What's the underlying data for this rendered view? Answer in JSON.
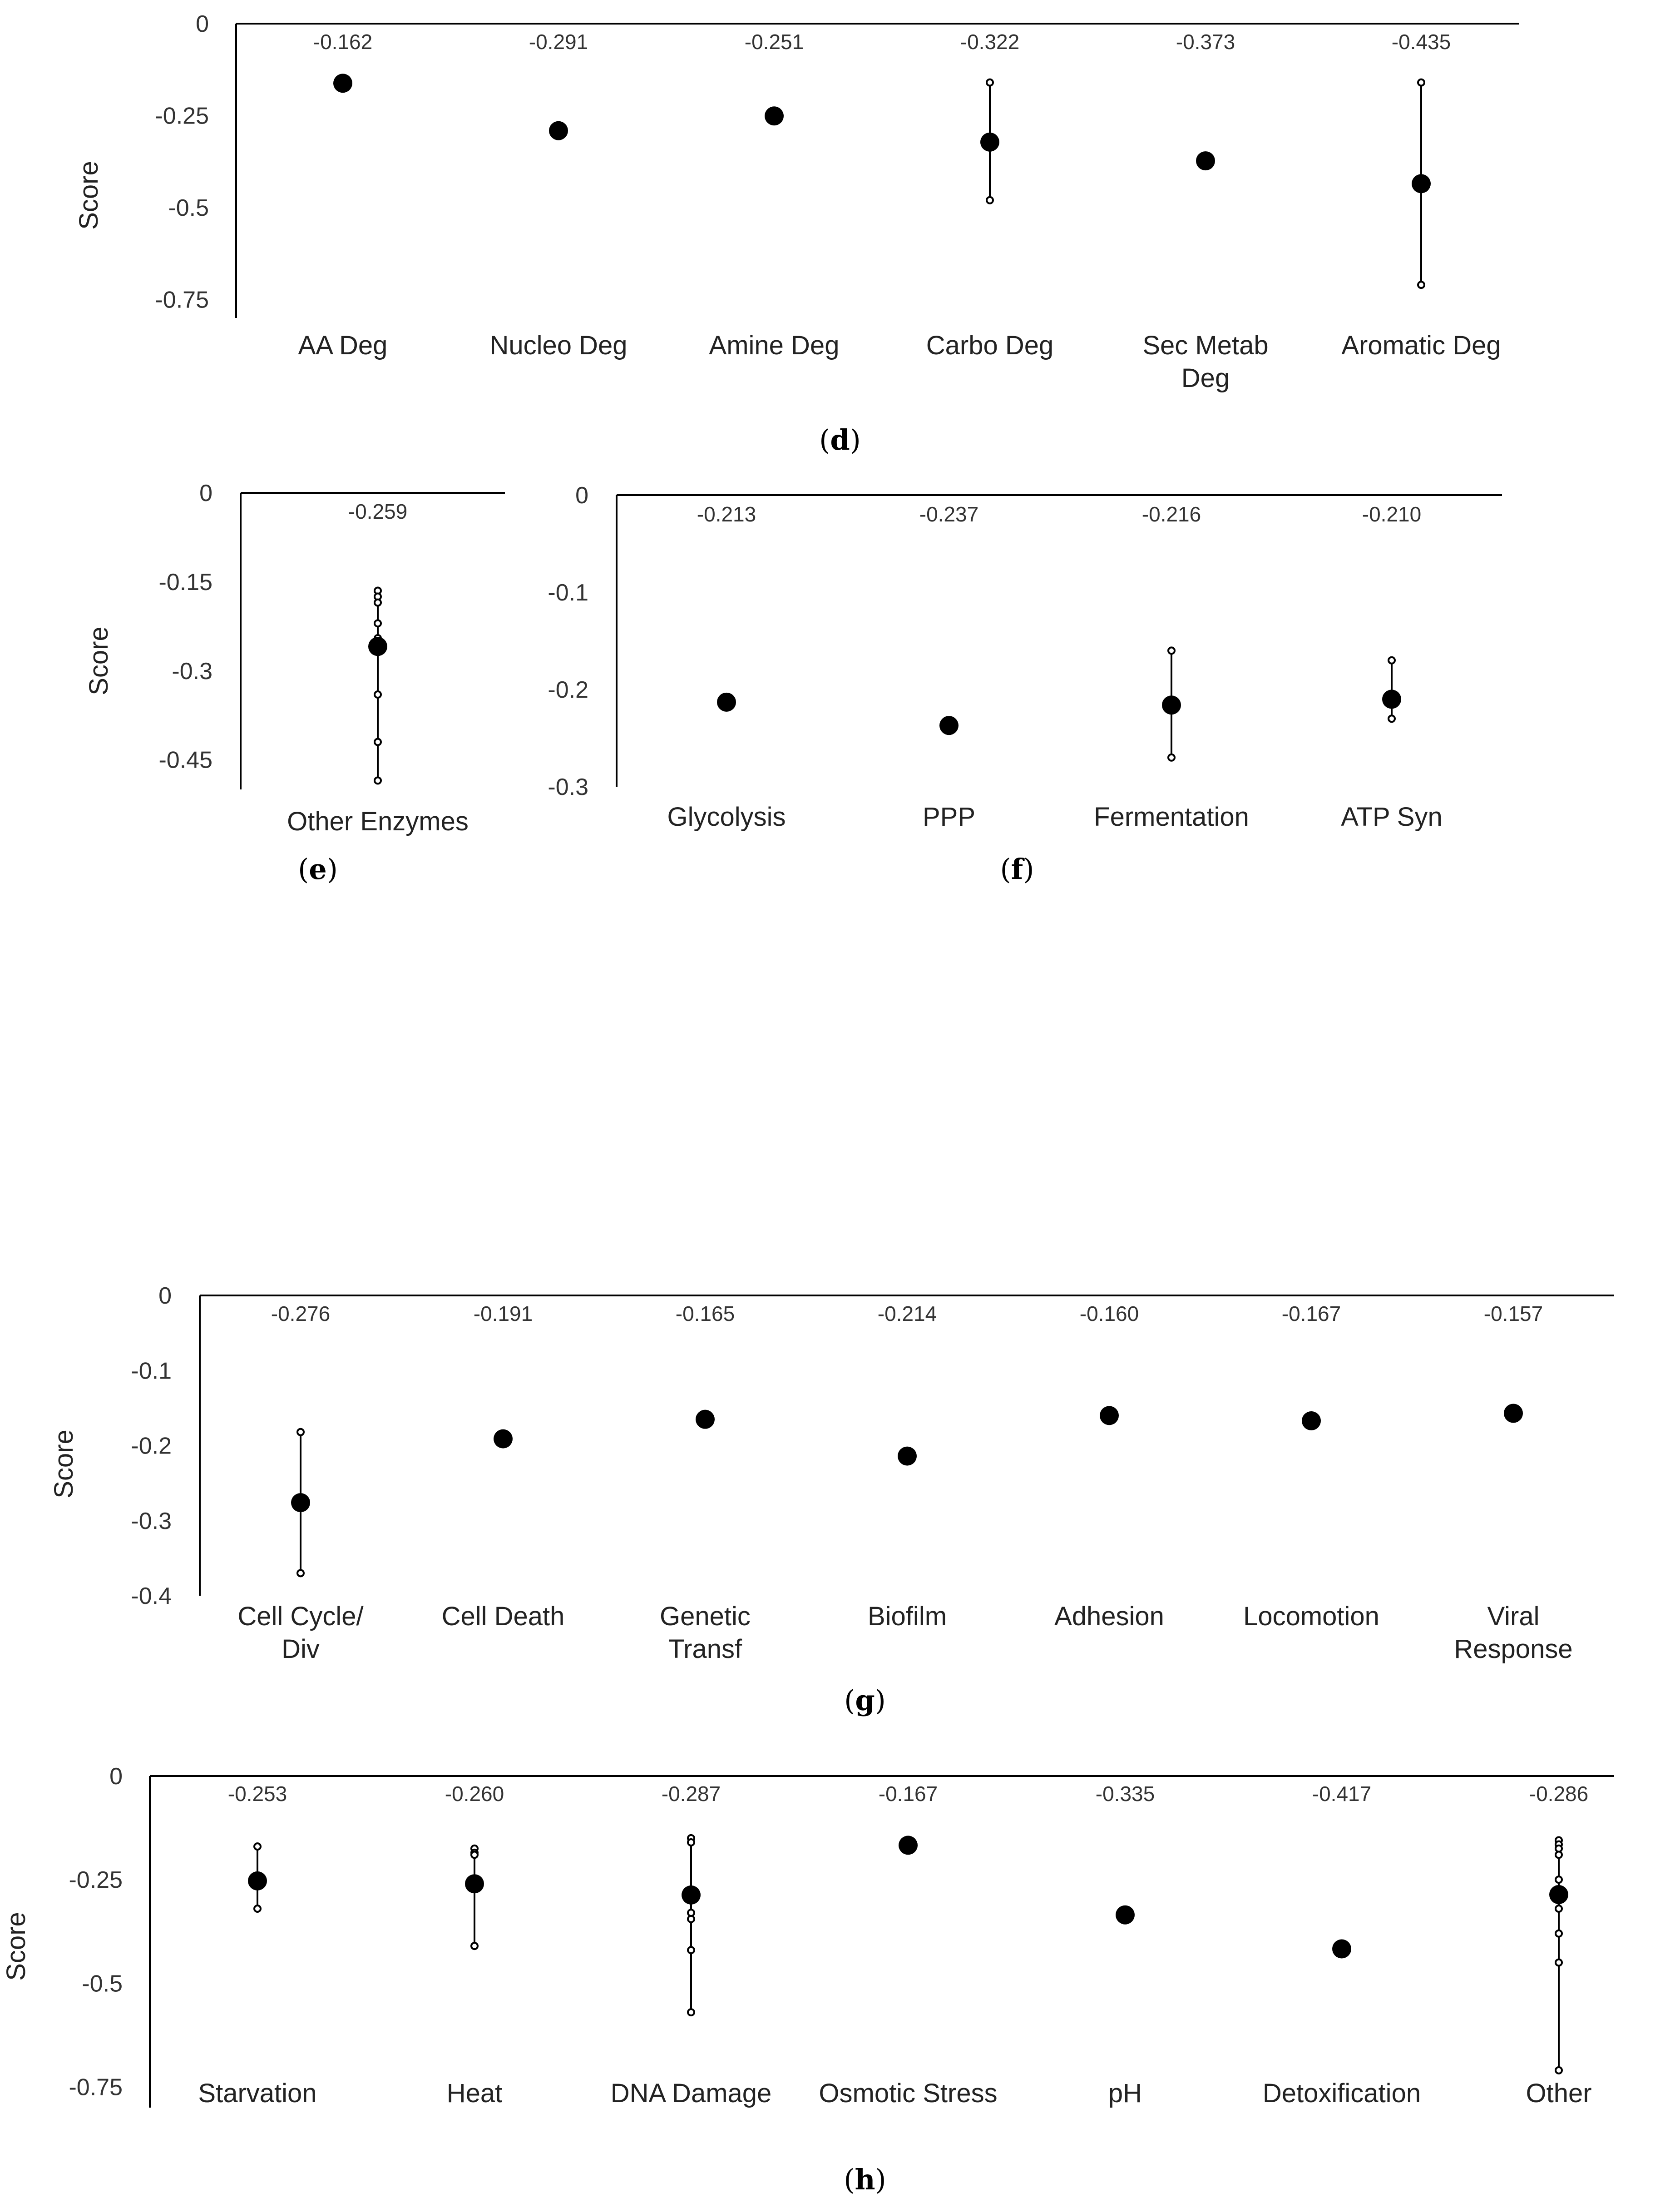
{
  "chart_data": [
    {
      "id": "d",
      "type": "scatter",
      "panel_label": "d",
      "ylabel": "Score",
      "ylim": [
        -0.8,
        0
      ],
      "yticks": [
        0,
        -0.25,
        -0.5,
        -0.75
      ],
      "ytick_labels": [
        "0",
        "-0.25",
        "-0.5",
        "-0.75"
      ],
      "categories": [
        {
          "label": [
            "AA Deg"
          ],
          "mean": -0.162,
          "mean_label": "-0.162",
          "points": []
        },
        {
          "label": [
            "Nucleo Deg"
          ],
          "mean": -0.291,
          "mean_label": "-0.291",
          "points": []
        },
        {
          "label": [
            "Amine Deg"
          ],
          "mean": -0.251,
          "mean_label": "-0.251",
          "points": []
        },
        {
          "label": [
            "Carbo Deg"
          ],
          "mean": -0.322,
          "mean_label": "-0.322",
          "points": [
            -0.16,
            -0.48
          ]
        },
        {
          "label": [
            "Sec Metab",
            "Deg"
          ],
          "mean": -0.373,
          "mean_label": "-0.373",
          "points": []
        },
        {
          "label": [
            "Aromatic Deg"
          ],
          "mean": -0.435,
          "mean_label": "-0.435",
          "points": [
            -0.16,
            -0.71
          ]
        }
      ]
    },
    {
      "id": "e",
      "type": "scatter",
      "panel_label": "e",
      "ylabel": "Score",
      "ylim": [
        -0.5,
        0
      ],
      "yticks": [
        0,
        -0.15,
        -0.3,
        -0.45
      ],
      "ytick_labels": [
        "0",
        "-0.15",
        "-0.3",
        "-0.45"
      ],
      "categories": [
        {
          "label": [
            "Other Enzymes"
          ],
          "mean": -0.259,
          "mean_label": "-0.259",
          "points": [
            -0.165,
            -0.175,
            -0.185,
            -0.22,
            -0.245,
            -0.34,
            -0.42,
            -0.485
          ]
        }
      ]
    },
    {
      "id": "f",
      "type": "scatter",
      "panel_label": "f",
      "ylabel": "",
      "ylim": [
        -0.3,
        0
      ],
      "yticks": [
        0,
        -0.1,
        -0.2,
        -0.3
      ],
      "ytick_labels": [
        "0",
        "-0.1",
        "-0.2",
        "-0.3"
      ],
      "categories": [
        {
          "label": [
            "Glycolysis"
          ],
          "mean": -0.213,
          "mean_label": "-0.213",
          "points": []
        },
        {
          "label": [
            "PPP"
          ],
          "mean": -0.237,
          "mean_label": "-0.237",
          "points": []
        },
        {
          "label": [
            "Fermentation"
          ],
          "mean": -0.216,
          "mean_label": "-0.216",
          "points": [
            -0.16,
            -0.27
          ]
        },
        {
          "label": [
            "ATP Syn"
          ],
          "mean": -0.21,
          "mean_label": "-0.210",
          "points": [
            -0.17,
            -0.23
          ]
        }
      ]
    },
    {
      "id": "g",
      "type": "scatter",
      "panel_label": "g",
      "ylabel": "Score",
      "ylim": [
        -0.4,
        0
      ],
      "yticks": [
        0,
        -0.1,
        -0.2,
        -0.3,
        -0.4
      ],
      "ytick_labels": [
        "0",
        "-0.1",
        "-0.2",
        "-0.3",
        "-0.4"
      ],
      "categories": [
        {
          "label": [
            "Cell Cycle/",
            "Div"
          ],
          "mean": -0.276,
          "mean_label": "-0.276",
          "points": [
            -0.182,
            -0.37
          ]
        },
        {
          "label": [
            "Cell Death"
          ],
          "mean": -0.191,
          "mean_label": "-0.191",
          "points": []
        },
        {
          "label": [
            "Genetic",
            "Transf"
          ],
          "mean": -0.165,
          "mean_label": "-0.165",
          "points": []
        },
        {
          "label": [
            "Biofilm"
          ],
          "mean": -0.214,
          "mean_label": "-0.214",
          "points": []
        },
        {
          "label": [
            "Adhesion"
          ],
          "mean": -0.16,
          "mean_label": "-0.160",
          "points": []
        },
        {
          "label": [
            "Locomotion"
          ],
          "mean": -0.167,
          "mean_label": "-0.167",
          "points": []
        },
        {
          "label": [
            "Viral",
            "Response"
          ],
          "mean": -0.157,
          "mean_label": "-0.157",
          "points": []
        }
      ]
    },
    {
      "id": "h",
      "type": "scatter",
      "panel_label": "h",
      "ylabel": "Score",
      "ylim": [
        -0.8,
        0
      ],
      "yticks": [
        0,
        -0.25,
        -0.5,
        -0.75
      ],
      "ytick_labels": [
        "0",
        "-0.25",
        "-0.5",
        "-0.75"
      ],
      "categories": [
        {
          "label": [
            "Starvation"
          ],
          "mean": -0.253,
          "mean_label": "-0.253",
          "points": [
            -0.17,
            -0.32
          ]
        },
        {
          "label": [
            "Heat"
          ],
          "mean": -0.26,
          "mean_label": "-0.260",
          "points": [
            -0.175,
            -0.185,
            -0.19,
            -0.41
          ]
        },
        {
          "label": [
            "DNA Damage"
          ],
          "mean": -0.287,
          "mean_label": "-0.287",
          "points": [
            -0.15,
            -0.16,
            -0.33,
            -0.345,
            -0.42,
            -0.57
          ]
        },
        {
          "label": [
            "Osmotic Stress"
          ],
          "mean": -0.167,
          "mean_label": "-0.167",
          "points": []
        },
        {
          "label": [
            "pH"
          ],
          "mean": -0.335,
          "mean_label": "-0.335",
          "points": []
        },
        {
          "label": [
            "Detoxification"
          ],
          "mean": -0.417,
          "mean_label": "-0.417",
          "points": []
        },
        {
          "label": [
            "Other"
          ],
          "mean": -0.286,
          "mean_label": "-0.286",
          "points": [
            -0.155,
            -0.165,
            -0.175,
            -0.19,
            -0.25,
            -0.3,
            -0.32,
            -0.38,
            -0.45,
            -0.71
          ]
        }
      ]
    }
  ]
}
